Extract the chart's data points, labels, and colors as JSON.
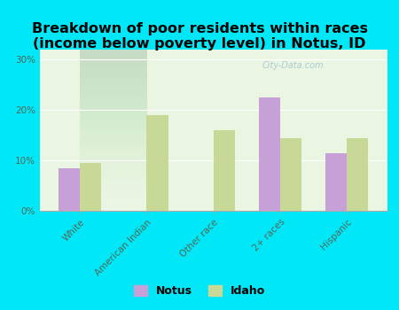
{
  "title": "Breakdown of poor residents within races\n(income below poverty level) in Notus, ID",
  "categories": [
    "White",
    "American Indian",
    "Other race",
    "2+ races",
    "Hispanic"
  ],
  "notus_values": [
    8.5,
    0,
    0,
    22.5,
    11.5
  ],
  "idaho_values": [
    9.5,
    19.0,
    16.0,
    14.5,
    14.5
  ],
  "notus_color": "#c8a0d8",
  "idaho_color": "#c8d896",
  "bg_outer": "#00e8f8",
  "bg_inner": "#eaf5e2",
  "ylim": [
    0,
    32
  ],
  "yticks": [
    0,
    10,
    20,
    30
  ],
  "ytick_labels": [
    "0%",
    "10%",
    "20%",
    "30%"
  ],
  "bar_width": 0.32,
  "title_fontsize": 11.5,
  "legend_fontsize": 9,
  "tick_fontsize": 7.5,
  "watermark": "City-Data.com"
}
